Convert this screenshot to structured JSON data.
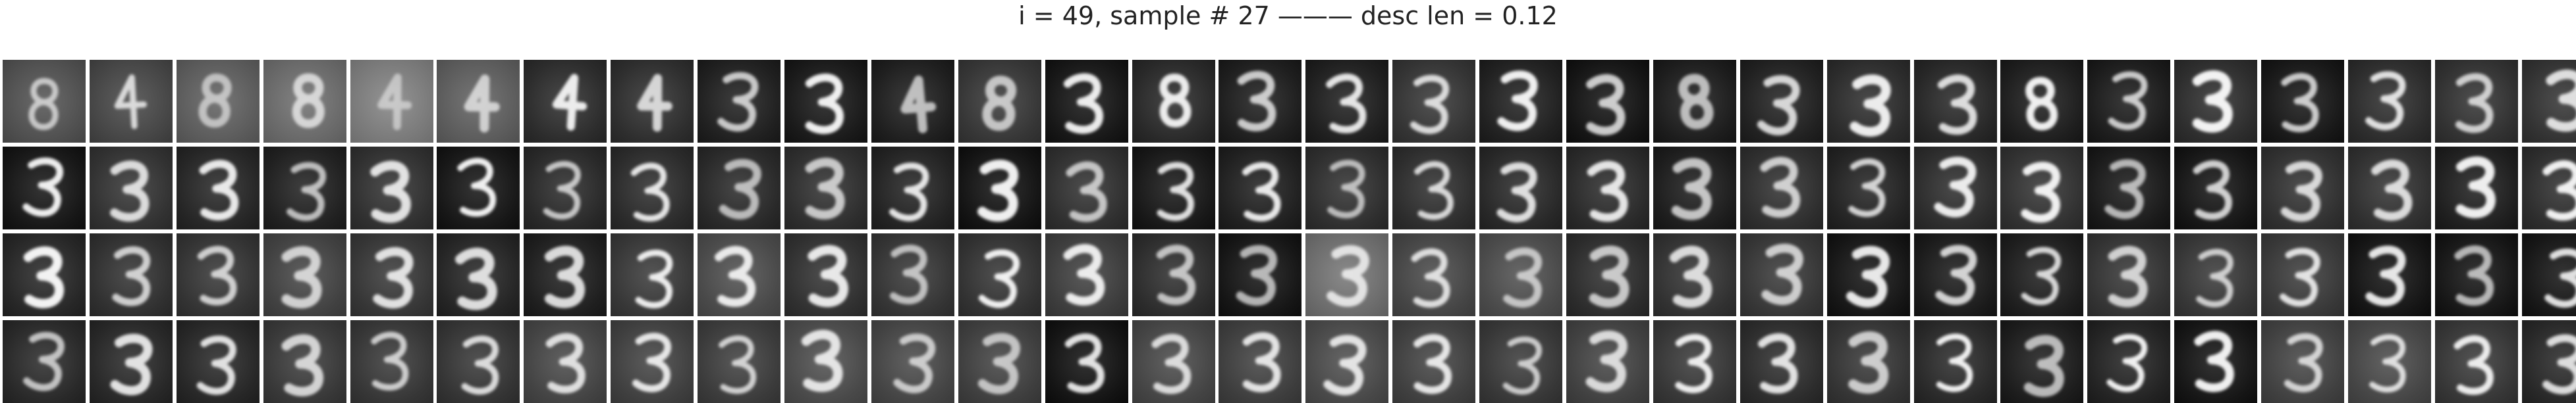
{
  "title": "i = 49, sample # 27 ——— desc len = 0.12",
  "grid": {
    "rows": 4,
    "cols": 30,
    "content": "handwritten digit reconstructions (mostly '3'), grayscale"
  }
}
